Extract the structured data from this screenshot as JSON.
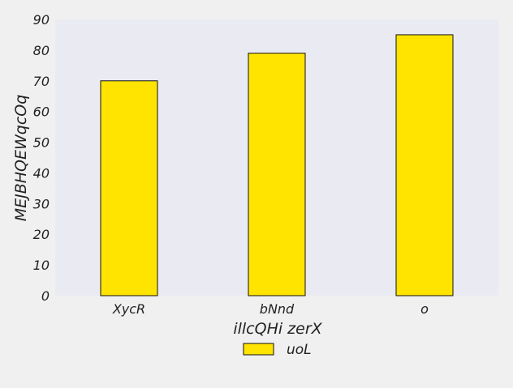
{
  "chart_data": {
    "type": "bar",
    "categories": [
      "XycR",
      "bNnd",
      "o"
    ],
    "series": [
      {
        "name": "uoL",
        "values": [
          70,
          79,
          85
        ]
      }
    ],
    "xlabel": "illcQHi zerX",
    "ylabel": "MEJBHQEWqcOq",
    "ylim": [
      0,
      90
    ],
    "yticks": [
      0,
      10,
      20,
      30,
      40,
      50,
      60,
      70,
      80,
      90
    ],
    "grid": false,
    "legend_position": "bottom-center"
  },
  "colors": {
    "bar_fill": "#ffe400",
    "bar_edge": "#111111",
    "plot_background": "#eaeaf2",
    "figure_background": "#f0f0f0"
  }
}
